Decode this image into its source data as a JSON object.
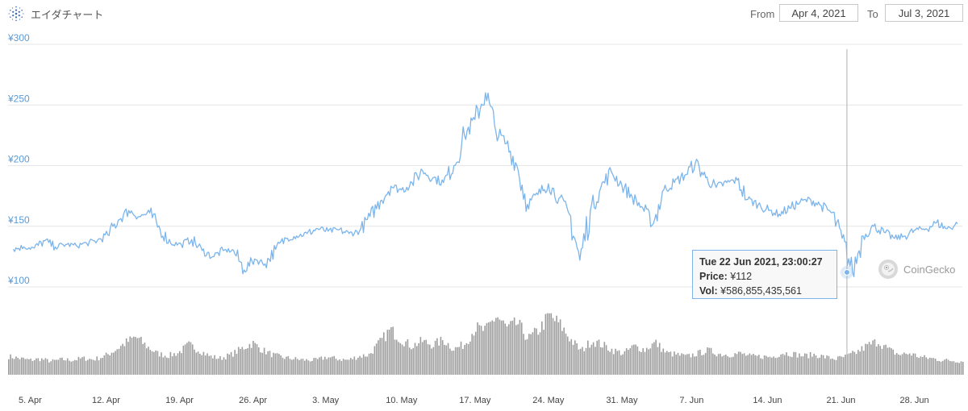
{
  "header": {
    "title": "エイダチャート",
    "from_label": "From",
    "from_value": "Apr 4, 2021",
    "to_label": "To",
    "to_value": "Jul 3, 2021"
  },
  "tooltip": {
    "date": "Tue 22 Jun 2021, 23:00:27",
    "price_label": "Price:",
    "price_value": "¥112",
    "vol_label": "Vol:",
    "vol_value": "¥586,855,435,561"
  },
  "credit": "CoinGecko",
  "colors": {
    "line": "#7cb5ec",
    "volume": "#8c8c8c",
    "axis_label": "#5a9ad6",
    "grid": "#e6e6e6"
  },
  "chart_data": [
    {
      "type": "line",
      "title": "エイダチャート",
      "series": [
        {
          "name": "Price"
        }
      ],
      "x_ticks": [
        "5. Apr",
        "12. Apr",
        "19. Apr",
        "26. Apr",
        "3. May",
        "10. May",
        "17. May",
        "24. May",
        "31. May",
        "7. Jun",
        "14. Jun",
        "21. Jun",
        "28. Jun"
      ],
      "y_ticks": [
        "¥100",
        "¥150",
        "¥200",
        "¥250",
        "¥300"
      ],
      "ylim": [
        100,
        300
      ],
      "xlim": [
        "2021-04-04",
        "2021-07-03"
      ],
      "grid": true,
      "points": [
        [
          "2021-04-04",
          131
        ],
        [
          "2021-04-05",
          133
        ],
        [
          "2021-04-06",
          132
        ],
        [
          "2021-04-07",
          138
        ],
        [
          "2021-04-08",
          133
        ],
        [
          "2021-04-09",
          135
        ],
        [
          "2021-04-10",
          134
        ],
        [
          "2021-04-11",
          136
        ],
        [
          "2021-04-12",
          138
        ],
        [
          "2021-04-13",
          143
        ],
        [
          "2021-04-14",
          155
        ],
        [
          "2021-04-15",
          163
        ],
        [
          "2021-04-16",
          158
        ],
        [
          "2021-04-17",
          161
        ],
        [
          "2021-04-18",
          147
        ],
        [
          "2021-04-19",
          136
        ],
        [
          "2021-04-20",
          135
        ],
        [
          "2021-04-21",
          139
        ],
        [
          "2021-04-22",
          130
        ],
        [
          "2021-04-23",
          125
        ],
        [
          "2021-04-24",
          130
        ],
        [
          "2021-04-25",
          130
        ],
        [
          "2021-04-26",
          114
        ],
        [
          "2021-04-27",
          123
        ],
        [
          "2021-04-28",
          119
        ],
        [
          "2021-04-29",
          131
        ],
        [
          "2021-04-30",
          140
        ],
        [
          "2021-05-01",
          142
        ],
        [
          "2021-05-02",
          144
        ],
        [
          "2021-05-03",
          148
        ],
        [
          "2021-05-04",
          146
        ],
        [
          "2021-05-05",
          147
        ],
        [
          "2021-05-06",
          144
        ],
        [
          "2021-05-07",
          146
        ],
        [
          "2021-05-08",
          158
        ],
        [
          "2021-05-09",
          171
        ],
        [
          "2021-05-10",
          183
        ],
        [
          "2021-05-11",
          180
        ],
        [
          "2021-05-12",
          186
        ],
        [
          "2021-05-13",
          196
        ],
        [
          "2021-05-14",
          190
        ],
        [
          "2021-05-15",
          186
        ],
        [
          "2021-05-16",
          200
        ],
        [
          "2021-05-17",
          225
        ],
        [
          "2021-05-18",
          238
        ],
        [
          "2021-05-19",
          260
        ],
        [
          "2021-05-20",
          228
        ],
        [
          "2021-05-21",
          218
        ],
        [
          "2021-05-22",
          200
        ],
        [
          "2021-05-23",
          168
        ],
        [
          "2021-05-24",
          176
        ],
        [
          "2021-05-25",
          185
        ],
        [
          "2021-05-26",
          173
        ],
        [
          "2021-05-27",
          160
        ],
        [
          "2021-05-28",
          122
        ],
        [
          "2021-05-29",
          163
        ],
        [
          "2021-05-30",
          182
        ],
        [
          "2021-05-31",
          195
        ],
        [
          "2021-06-01",
          184
        ],
        [
          "2021-06-02",
          174
        ],
        [
          "2021-06-03",
          165
        ],
        [
          "2021-06-04",
          152
        ],
        [
          "2021-06-05",
          180
        ],
        [
          "2021-06-06",
          186
        ],
        [
          "2021-06-07",
          192
        ],
        [
          "2021-06-08",
          202
        ],
        [
          "2021-06-09",
          190
        ],
        [
          "2021-06-10",
          182
        ],
        [
          "2021-06-11",
          186
        ],
        [
          "2021-06-12",
          188
        ],
        [
          "2021-06-13",
          172
        ],
        [
          "2021-06-14",
          168
        ],
        [
          "2021-06-15",
          163
        ],
        [
          "2021-06-16",
          160
        ],
        [
          "2021-06-17",
          165
        ],
        [
          "2021-06-18",
          170
        ],
        [
          "2021-06-19",
          172
        ],
        [
          "2021-06-20",
          167
        ],
        [
          "2021-06-21",
          161
        ],
        [
          "2021-06-22",
          140
        ],
        [
          "2021-06-23",
          112
        ],
        [
          "2021-06-24",
          142
        ],
        [
          "2021-06-25",
          150
        ],
        [
          "2021-06-26",
          145
        ],
        [
          "2021-06-27",
          140
        ],
        [
          "2021-06-28",
          142
        ],
        [
          "2021-06-29",
          147
        ],
        [
          "2021-06-30",
          148
        ],
        [
          "2021-07-01",
          153
        ],
        [
          "2021-07-02",
          148
        ],
        [
          "2021-07-03",
          152
        ]
      ],
      "highlight": {
        "x": "2021-06-22 23:00:27",
        "y": 112
      }
    },
    {
      "type": "bar",
      "series": [
        {
          "name": "Vol"
        }
      ],
      "volume": [
        0.3,
        0.27,
        0.24,
        0.26,
        0.22,
        0.25,
        0.24,
        0.27,
        0.25,
        0.3,
        0.4,
        0.52,
        0.62,
        0.47,
        0.35,
        0.31,
        0.36,
        0.49,
        0.4,
        0.3,
        0.27,
        0.33,
        0.43,
        0.52,
        0.4,
        0.32,
        0.28,
        0.26,
        0.24,
        0.24,
        0.29,
        0.26,
        0.24,
        0.3,
        0.33,
        0.53,
        0.74,
        0.58,
        0.47,
        0.55,
        0.49,
        0.57,
        0.42,
        0.5,
        0.77,
        0.72,
        0.97,
        0.76,
        0.84,
        0.59,
        0.73,
        0.97,
        0.82,
        0.58,
        0.39,
        0.56,
        0.49,
        0.4,
        0.35,
        0.47,
        0.41,
        0.53,
        0.36,
        0.33,
        0.3,
        0.35,
        0.4,
        0.34,
        0.33,
        0.35,
        0.3,
        0.3,
        0.29,
        0.36,
        0.34,
        0.31,
        0.33,
        0.29,
        0.26,
        0.3,
        0.37,
        0.48,
        0.55,
        0.41,
        0.33,
        0.35,
        0.29,
        0.27,
        0.24,
        0.23,
        0.22
      ]
    }
  ]
}
